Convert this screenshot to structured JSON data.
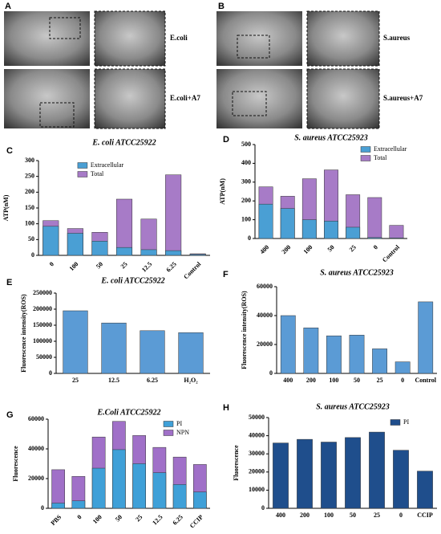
{
  "image_panels": [
    {
      "letter": "A",
      "labels": [
        "E.coli",
        "E.coli+A7"
      ]
    },
    {
      "letter": "B",
      "labels": [
        "S.aureus",
        "S.aureus+A7"
      ]
    }
  ],
  "chart_data": [
    {
      "type": "bar",
      "panel": "C",
      "title": "E. coli ATCC25922",
      "ylabel": "ATP(nM)",
      "categories": [
        "0",
        "100",
        "50",
        "25",
        "12.5",
        "6.25",
        "Control"
      ],
      "series": [
        {
          "name": "Extracellular",
          "color": "#4a9fd4",
          "values": [
            92,
            70,
            45,
            25,
            18,
            15,
            3
          ]
        },
        {
          "name": "Total",
          "color": "#a77bc7",
          "values": [
            110,
            85,
            73,
            178,
            115,
            255,
            5
          ]
        }
      ],
      "ylim": [
        0,
        300
      ],
      "yticks": [
        0,
        50,
        100,
        150,
        200,
        250,
        300
      ],
      "legend": "upper left",
      "xtick_rotation": 45
    },
    {
      "type": "bar",
      "panel": "D",
      "title": "S. aureus ATCC25923",
      "ylabel": "ATP(nM)",
      "categories": [
        "400",
        "200",
        "100",
        "50",
        "25",
        "0",
        "Control"
      ],
      "series": [
        {
          "name": "Extracellular",
          "color": "#4a9fd4",
          "values": [
            183,
            160,
            100,
            93,
            60,
            5,
            3
          ]
        },
        {
          "name": "Total",
          "color": "#a77bc7",
          "values": [
            275,
            225,
            318,
            365,
            233,
            218,
            70
          ]
        }
      ],
      "ylim": [
        0,
        500
      ],
      "yticks": [
        0,
        100,
        200,
        300,
        400,
        500
      ],
      "legend": "upper right",
      "xtick_rotation": 45
    },
    {
      "type": "bar",
      "panel": "E",
      "title": "E. coli ATCC25922",
      "ylabel": "Fluorescence intensity(ROS)",
      "categories": [
        "25",
        "12.5",
        "6.25",
        "H₂O₂"
      ],
      "series": [
        {
          "color": "#5b9bd5",
          "values": [
            195000,
            157000,
            133000,
            127000
          ]
        }
      ],
      "ylim": [
        0,
        250000
      ],
      "yticks": [
        0,
        50000,
        100000,
        150000,
        200000,
        250000
      ],
      "xtick_rotation": 0
    },
    {
      "type": "bar",
      "panel": "F",
      "title": "S. aureus ATCC25923",
      "ylabel": "Fluorescence intensity(ROS)",
      "categories": [
        "400",
        "200",
        "100",
        "50",
        "25",
        "0",
        "Control"
      ],
      "series": [
        {
          "color": "#5b9bd5",
          "values": [
            40000,
            31500,
            26000,
            26500,
            17000,
            8000,
            49500
          ]
        }
      ],
      "ylim": [
        0,
        60000
      ],
      "yticks": [
        0,
        20000,
        40000,
        60000
      ],
      "xtick_rotation": 0
    },
    {
      "type": "bar",
      "panel": "G",
      "title": "E.Coli ATCC25922",
      "ylabel": "Fluorescence",
      "categories": [
        "PBS",
        "0",
        "100",
        "50",
        "25",
        "12.5",
        "6.25",
        "CCIP"
      ],
      "series": [
        {
          "name": "PI",
          "color": "#3fa0d8",
          "values": [
            3500,
            5000,
            27000,
            39500,
            30000,
            24000,
            16000,
            11000
          ]
        },
        {
          "name": "NPN",
          "color": "#a070c8",
          "values": [
            26000,
            21500,
            48000,
            58500,
            49000,
            41000,
            34500,
            29500
          ]
        }
      ],
      "ylim": [
        0,
        60000
      ],
      "yticks": [
        0,
        20000,
        40000,
        60000
      ],
      "legend": "upper right",
      "xtick_rotation": 45
    },
    {
      "type": "bar",
      "panel": "H",
      "title": "S. aureus ATCC25923",
      "ylabel": "Fluorescence",
      "categories": [
        "400",
        "200",
        "100",
        "50",
        "25",
        "0",
        "CCIP"
      ],
      "series": [
        {
          "name": "PI",
          "color": "#1f4e8c",
          "values": [
            36000,
            38000,
            36500,
            39000,
            42000,
            32000,
            20500
          ]
        }
      ],
      "ylim": [
        0,
        50000
      ],
      "yticks": [
        0,
        10000,
        20000,
        30000,
        40000,
        50000
      ],
      "legend": "upper right",
      "xtick_rotation": 0
    }
  ]
}
